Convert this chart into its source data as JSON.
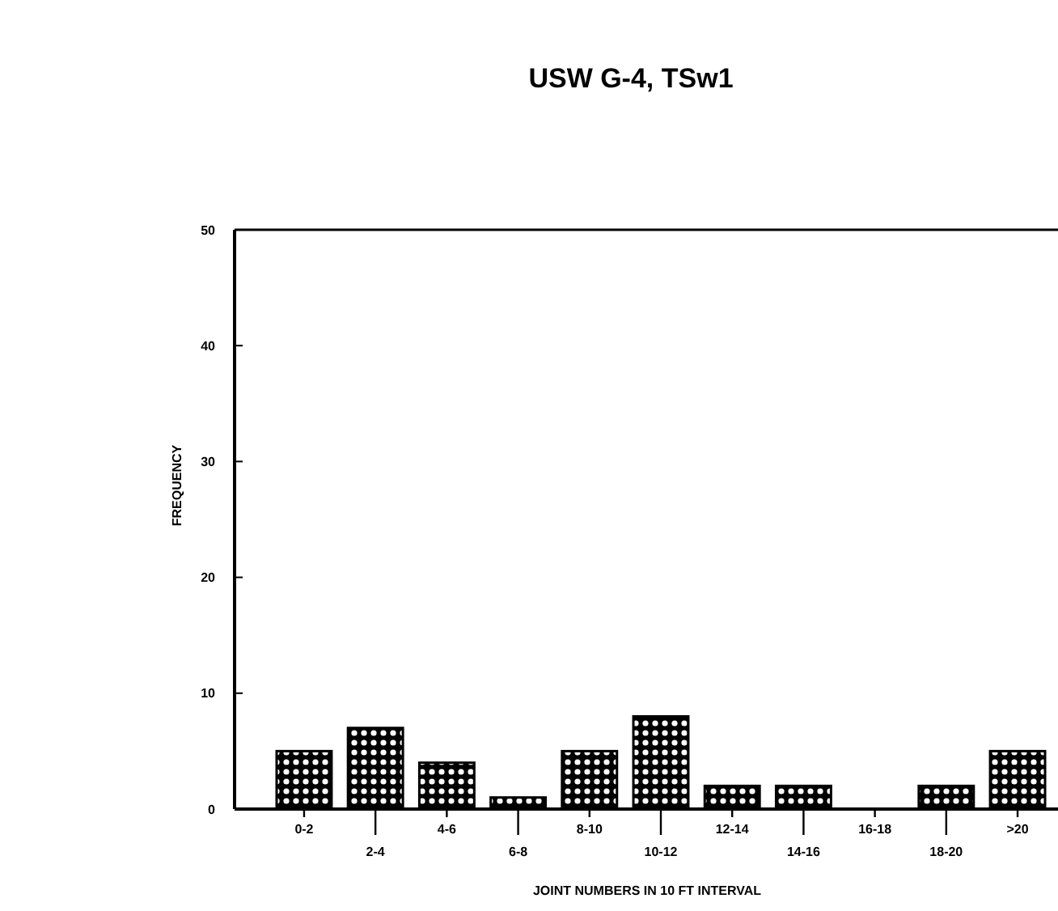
{
  "chart_data": {
    "type": "bar",
    "title": "USW G-4, TSw1",
    "xlabel": "JOINT NUMBERS IN 10 FT INTERVAL",
    "ylabel": "FREQUENCY",
    "categories": [
      "0-2",
      "2-4",
      "4-6",
      "6-8",
      "8-10",
      "10-12",
      "12-14",
      "14-16",
      "16-18",
      "18-20",
      ">20"
    ],
    "values": [
      5,
      7,
      4,
      1,
      5,
      8,
      2,
      2,
      0,
      2,
      5
    ],
    "color": "#000000",
    "ylim": [
      0,
      50
    ],
    "yticks": [
      0,
      10,
      20,
      30,
      40,
      50
    ],
    "grid": false
  }
}
